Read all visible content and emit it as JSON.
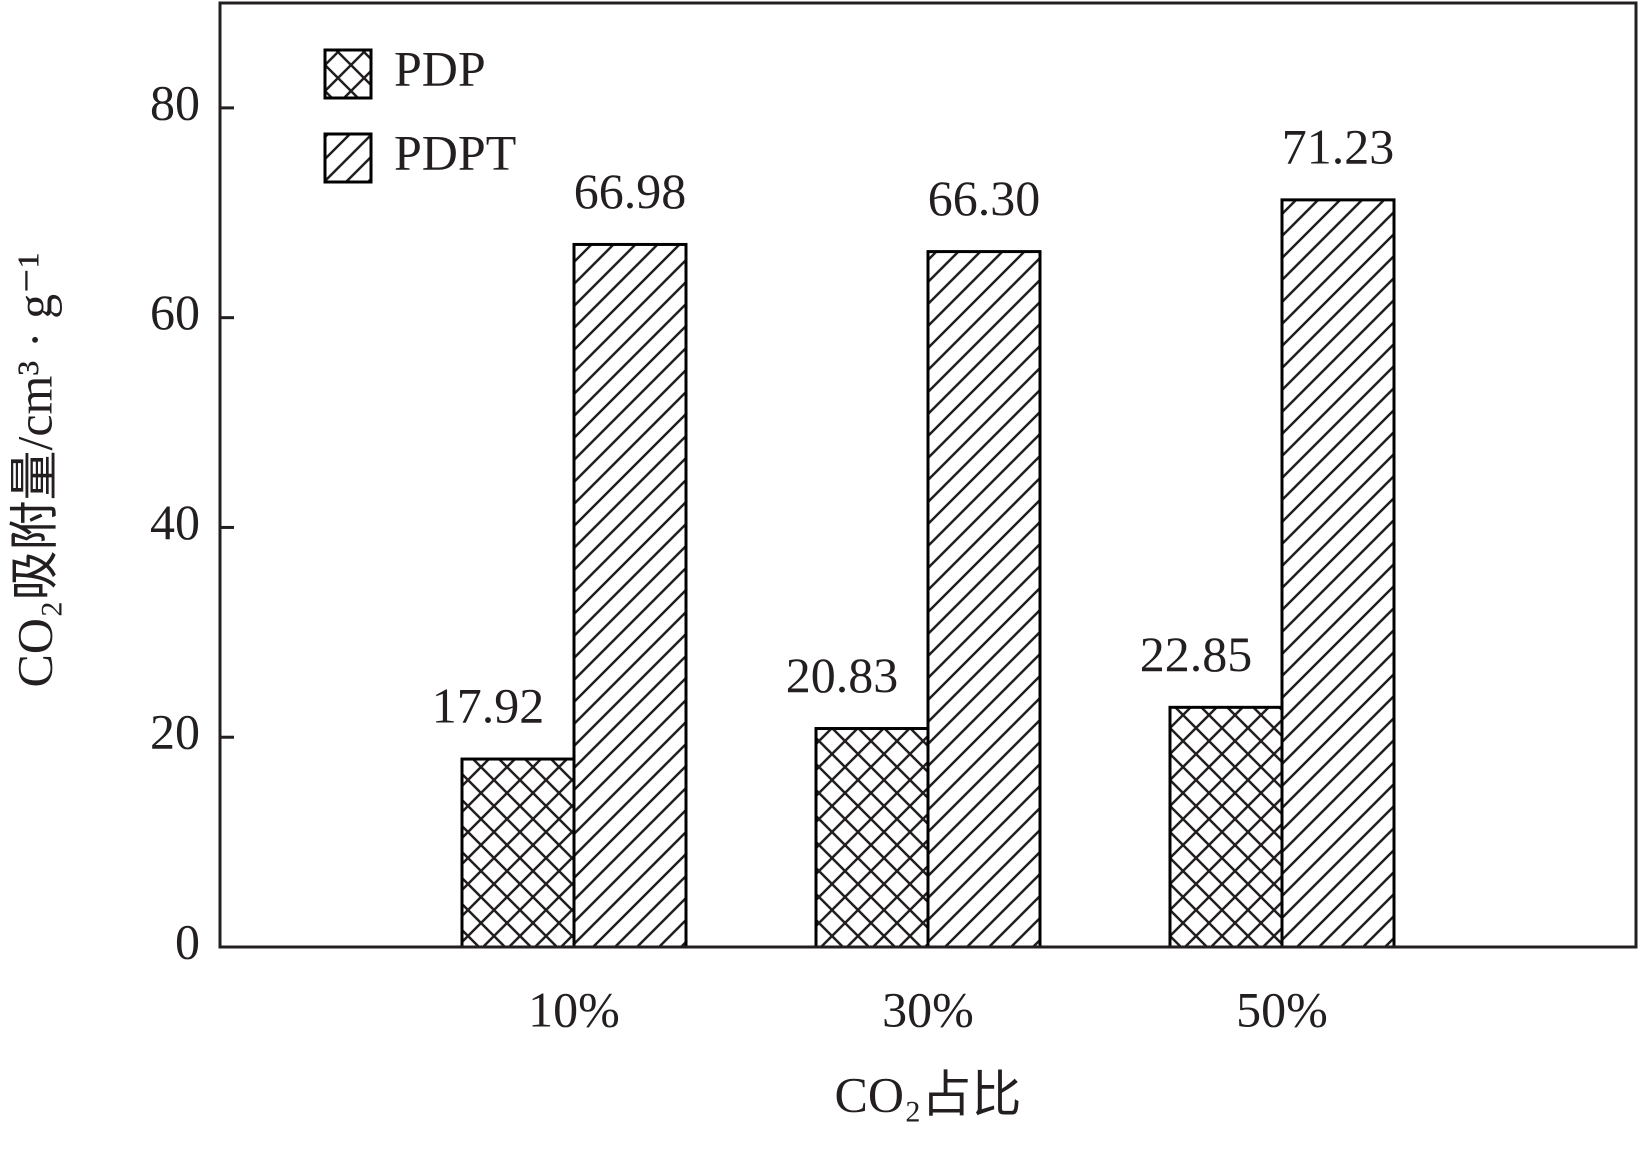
{
  "chart_data": {
    "type": "bar",
    "x_label": "CO₂占比",
    "y_label": "CO₂吸附量/cm³ · g⁻¹",
    "categories": [
      "10%",
      "30%",
      "50%"
    ],
    "series": [
      {
        "name": "PDP",
        "color": "#000000",
        "pattern": "crosshatch",
        "values": [
          17.92,
          20.83,
          22.85
        ],
        "value_labels": [
          "17.92",
          "20.83",
          "22.85"
        ]
      },
      {
        "name": "PDPT",
        "color": "#000000",
        "pattern": "diagonal",
        "values": [
          66.98,
          66.3,
          71.23
        ],
        "value_labels": [
          "66.98",
          "66.30",
          "71.23"
        ]
      }
    ],
    "ylim": [
      0,
      90
    ],
    "yticks": [
      0,
      20,
      40,
      60,
      80
    ],
    "legend": "top-left",
    "grid": false
  }
}
